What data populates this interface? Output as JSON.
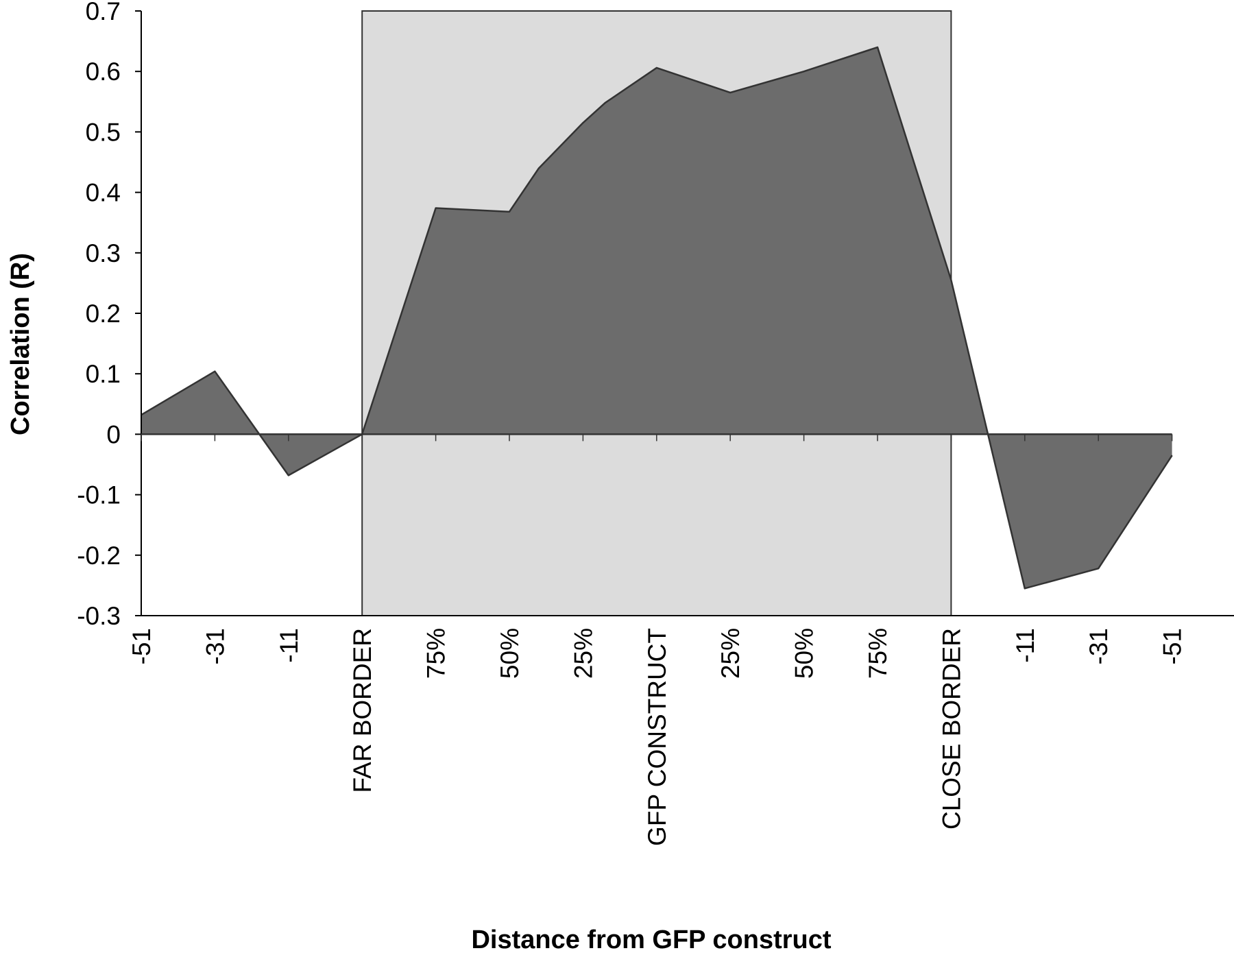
{
  "chart_data": {
    "type": "area",
    "title": "",
    "xlabel": "Distance from GFP construct",
    "ylabel": "Correlation (R)",
    "ylim": [
      -0.3,
      0.7
    ],
    "yticks": [
      "0.7",
      "0.6",
      "0.5",
      "0.4",
      "0.3",
      "0.2",
      "0.1",
      "0",
      "-0.1",
      "-0.2",
      "-0.3"
    ],
    "categories": [
      "-51",
      "-31",
      "-11",
      "FAR BORDER",
      "75%",
      "50%",
      "25%",
      "GFP CONSTRUCT",
      "25%",
      "50%",
      "75%",
      "CLOSE BORDER",
      "-11",
      "-31",
      "-51"
    ],
    "x": [
      0,
      1,
      2,
      3,
      4,
      5,
      6,
      7,
      8,
      9,
      10,
      11,
      12,
      13,
      14
    ],
    "x_extent": [
      0,
      15
    ],
    "shaded_region": {
      "from": "FAR BORDER",
      "to": "CLOSE BORDER"
    },
    "grid": false,
    "legend": "none",
    "series": [
      {
        "points": [
          [
            0,
            0.032
          ],
          [
            1,
            0.104
          ],
          [
            2,
            -0.068
          ],
          [
            3,
            0.0
          ],
          [
            4,
            0.374
          ],
          [
            5,
            0.368
          ],
          [
            5.4,
            0.44
          ],
          [
            6,
            0.515
          ],
          [
            6.3,
            0.548
          ],
          [
            7,
            0.606
          ],
          [
            8,
            0.565
          ],
          [
            9,
            0.6
          ],
          [
            10,
            0.64
          ],
          [
            11,
            0.255
          ],
          [
            11.5,
            0.0
          ],
          [
            12,
            -0.255
          ],
          [
            13,
            -0.222
          ],
          [
            14,
            -0.035
          ]
        ]
      }
    ],
    "colors": {
      "area": "#6c6c6c",
      "band": "#dcdcdc",
      "line": "#333333",
      "axis": "#000000"
    }
  }
}
